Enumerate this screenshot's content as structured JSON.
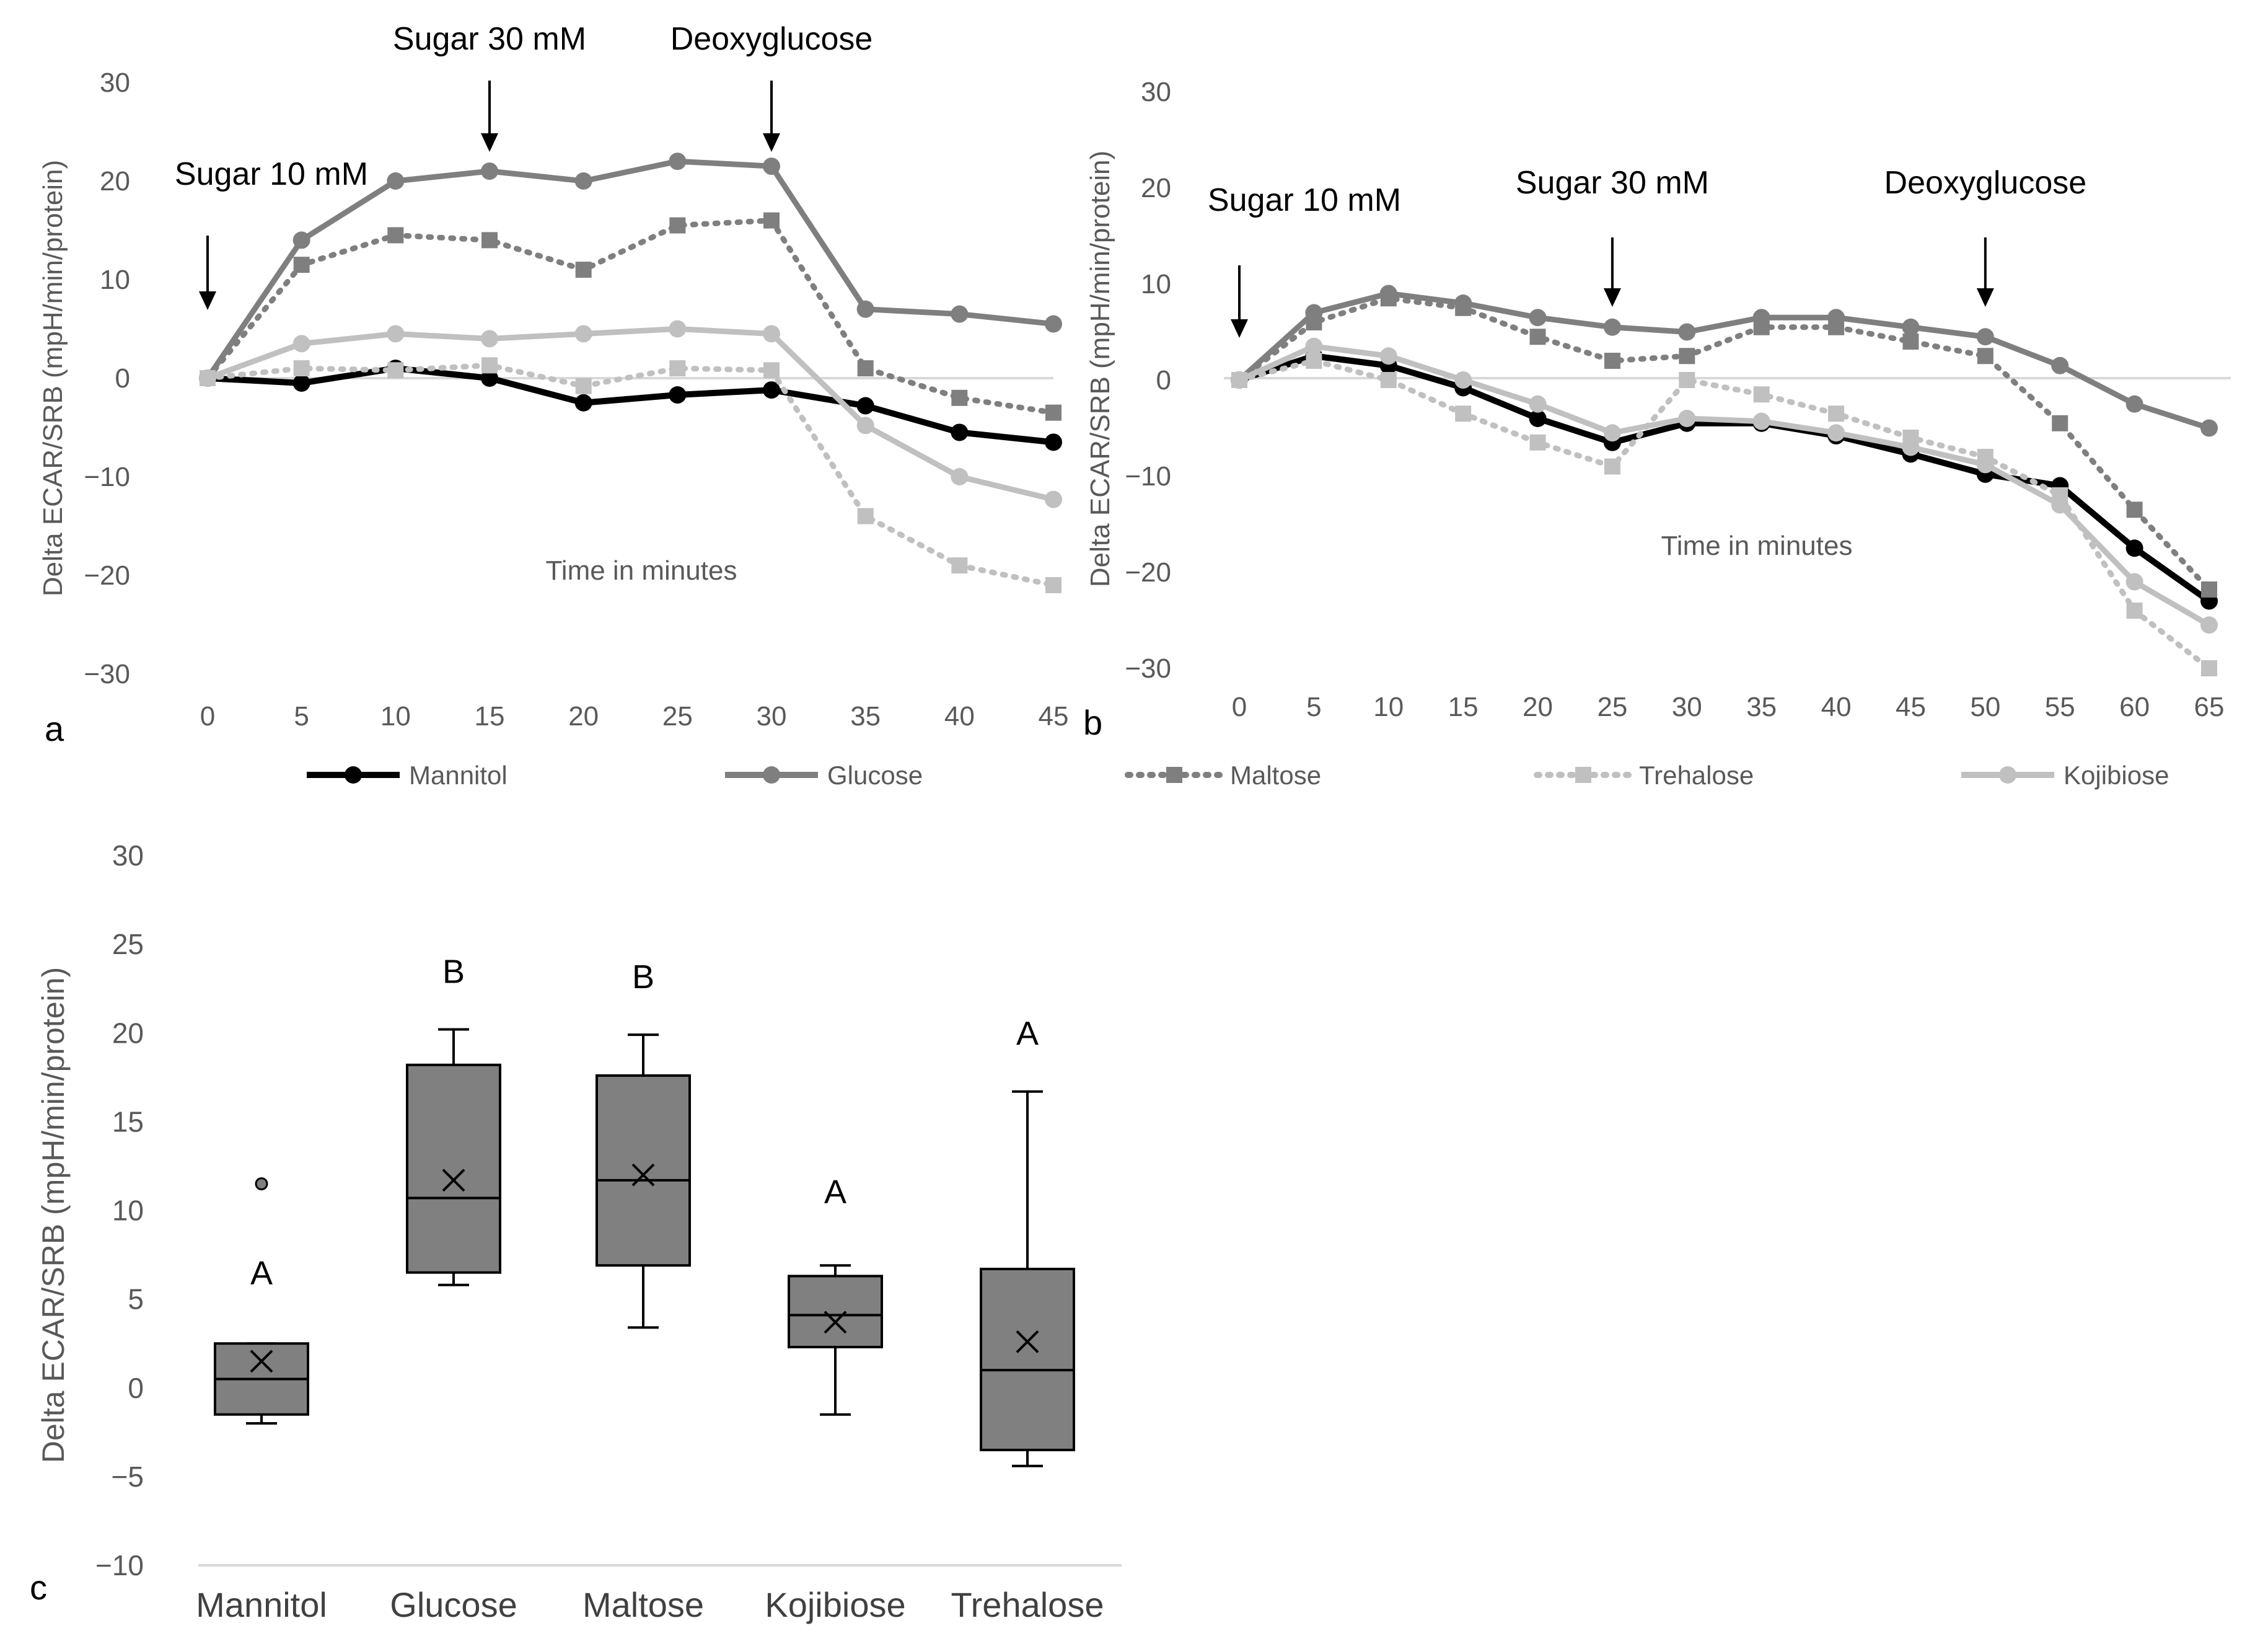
{
  "chart_data": [
    {
      "panel": "a",
      "type": "line",
      "ylabel": "Delta ECAR/SRB (mpH/min/protein)",
      "xlabel": "Time in minutes",
      "ylim": [
        -30,
        30
      ],
      "yticks": [
        -30,
        -20,
        -10,
        0,
        10,
        20,
        30
      ],
      "x": [
        0,
        5,
        10,
        15,
        20,
        25,
        30,
        35,
        40,
        45
      ],
      "annotations": [
        {
          "text": "Sugar 10 mM",
          "x": 0
        },
        {
          "text": "Sugar 30 mM",
          "x": 15
        },
        {
          "text": "Deoxyglucose",
          "x": 30
        }
      ],
      "series": [
        {
          "name": "Mannitol",
          "color": "#000000",
          "dash": "solid",
          "marker": "circle",
          "values": [
            0,
            -0.5,
            1,
            0,
            -2.5,
            -1.7,
            -1.2,
            -2.8,
            -5.5,
            -6.5
          ]
        },
        {
          "name": "Glucose",
          "color": "#7f7f7f",
          "dash": "solid",
          "marker": "circle",
          "values": [
            0,
            14,
            20,
            21,
            20,
            22,
            21.5,
            7,
            6.5,
            5.5
          ]
        },
        {
          "name": "Maltose",
          "color": "#7f7f7f",
          "dash": "dot",
          "marker": "square",
          "values": [
            0,
            11.5,
            14.5,
            14,
            11,
            15.5,
            16,
            1,
            -2,
            -3.5
          ]
        },
        {
          "name": "Trehalose",
          "color": "#c0c0c0",
          "dash": "dot",
          "marker": "square",
          "values": [
            0,
            1,
            0.8,
            1.3,
            -0.8,
            1,
            0.8,
            -14,
            -19,
            -21
          ]
        },
        {
          "name": "Kojibiose",
          "color": "#c0c0c0",
          "dash": "solid",
          "marker": "circle",
          "values": [
            0,
            3.5,
            4.5,
            4,
            4.5,
            5,
            4.5,
            -4.8,
            -10,
            -12.3
          ]
        }
      ]
    },
    {
      "panel": "b",
      "type": "line",
      "ylabel": "Delta ECAR/SRB (mpH/min/protein)",
      "xlabel": "Time in minutes",
      "ylim": [
        -30,
        30
      ],
      "yticks": [
        -30,
        -20,
        -10,
        0,
        10,
        20,
        30
      ],
      "x": [
        0,
        5,
        10,
        15,
        20,
        25,
        30,
        35,
        40,
        45,
        50,
        55,
        60,
        65
      ],
      "annotations": [
        {
          "text": "Sugar 10 mM",
          "x": 0
        },
        {
          "text": "Sugar 30 mM",
          "x": 25
        },
        {
          "text": "Deoxyglucose",
          "x": 50
        }
      ],
      "series": [
        {
          "name": "Mannitol",
          "color": "#000000",
          "dash": "solid",
          "marker": "circle",
          "values": [
            0,
            2.5,
            1.5,
            -0.8,
            -4,
            -6.5,
            -4.5,
            -4.5,
            -5.8,
            -7.7,
            -9.8,
            -11,
            -17.5,
            -23
          ]
        },
        {
          "name": "Glucose",
          "color": "#7f7f7f",
          "dash": "solid",
          "marker": "circle",
          "values": [
            0,
            7,
            9,
            8,
            6.5,
            5.5,
            5,
            6.5,
            6.5,
            5.5,
            4.5,
            1.5,
            -2.5,
            -5
          ]
        },
        {
          "name": "Maltose",
          "color": "#7f7f7f",
          "dash": "dot",
          "marker": "square",
          "values": [
            0,
            6,
            8.5,
            7.5,
            4.5,
            2,
            2.5,
            5.5,
            5.5,
            4,
            2.5,
            -4.5,
            -13.5,
            -21.8
          ]
        },
        {
          "name": "Trehalose",
          "color": "#c0c0c0",
          "dash": "dot",
          "marker": "square",
          "values": [
            0,
            2,
            0,
            -3.5,
            -6.5,
            -9,
            0,
            -1.5,
            -3.5,
            -6,
            -8,
            -12,
            -24,
            -30
          ]
        },
        {
          "name": "Kojibiose",
          "color": "#c0c0c0",
          "dash": "solid",
          "marker": "circle",
          "values": [
            0,
            3.5,
            2.5,
            0,
            -2.5,
            -5.5,
            -4,
            -4.3,
            -5.5,
            -7,
            -8.8,
            -13,
            -21,
            -25.5
          ]
        }
      ]
    },
    {
      "panel": "c",
      "type": "box",
      "ylabel": "Delta ECAR/SRB (mpH/min/protein)",
      "ylim": [
        -10,
        30
      ],
      "yticks": [
        -10,
        -5,
        0,
        5,
        10,
        15,
        20,
        25,
        30
      ],
      "categories": [
        "Mannitol",
        "Glucose",
        "Maltose",
        "Kojibiose",
        "Trehalose"
      ],
      "boxes": [
        {
          "name": "Mannitol",
          "whisker_low": -2,
          "q1": -1.5,
          "median": 0.5,
          "q3": 2.5,
          "whisker_high": 2.5,
          "mean": 1.5,
          "outliers": [
            11.5
          ],
          "letter": "A"
        },
        {
          "name": "Glucose",
          "whisker_low": 5.8,
          "q1": 6.5,
          "median": 10.7,
          "q3": 18.2,
          "whisker_high": 20.2,
          "mean": 11.7,
          "outliers": [],
          "letter": "B"
        },
        {
          "name": "Maltose",
          "whisker_low": 3.4,
          "q1": 6.9,
          "median": 11.7,
          "q3": 17.6,
          "whisker_high": 19.9,
          "mean": 12,
          "outliers": [],
          "letter": "B"
        },
        {
          "name": "Kojibiose",
          "whisker_low": -1.5,
          "q1": 2.3,
          "median": 4.1,
          "q3": 6.3,
          "whisker_high": 6.9,
          "mean": 3.7,
          "outliers": [],
          "letter": "A"
        },
        {
          "name": "Trehalose",
          "whisker_low": -4.4,
          "q1": -3.5,
          "median": 1,
          "q3": 6.7,
          "whisker_high": 16.7,
          "mean": 2.6,
          "outliers": [],
          "letter": "A"
        }
      ]
    }
  ],
  "legend": [
    {
      "name": "Mannitol",
      "color": "#000000",
      "dash": "solid",
      "marker": "circle"
    },
    {
      "name": "Glucose",
      "color": "#7f7f7f",
      "dash": "solid",
      "marker": "circle"
    },
    {
      "name": "Maltose",
      "color": "#7f7f7f",
      "dash": "dot",
      "marker": "square"
    },
    {
      "name": "Trehalose",
      "color": "#c0c0c0",
      "dash": "dot",
      "marker": "square"
    },
    {
      "name": "Kojibiose",
      "color": "#c0c0c0",
      "dash": "solid",
      "marker": "circle"
    }
  ],
  "colors": {
    "box_fill": "#808080",
    "box_stroke": "#000000",
    "zero_line": "#d9d9d9",
    "axis": "#d9d9d9"
  }
}
